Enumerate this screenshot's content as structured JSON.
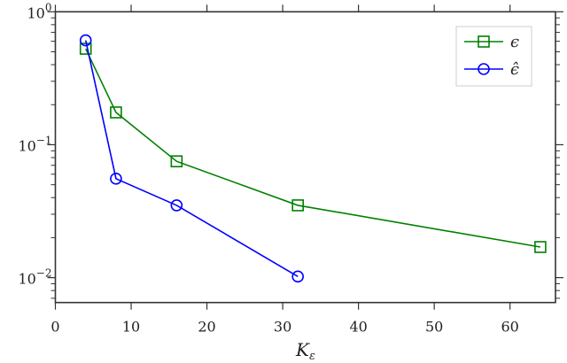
{
  "chart_data": {
    "type": "line",
    "title": "",
    "xlabel": "K_ε",
    "xlabel_main": "K",
    "xlabel_sub": "ε",
    "ylabel": "",
    "xlim": [
      0,
      66
    ],
    "ylim": [
      0.0065,
      1
    ],
    "yscale": "log",
    "xticks": [
      0,
      10,
      20,
      30,
      40,
      50,
      60
    ],
    "xtick_labels": [
      "0",
      "10",
      "20",
      "30",
      "40",
      "50",
      "60"
    ],
    "yticks": [
      1,
      0.1,
      0.01
    ],
    "ytick_labels": [
      {
        "base": "10",
        "exp": "0"
      },
      {
        "base": "10",
        "exp": "−1"
      },
      {
        "base": "10",
        "exp": "−2"
      }
    ],
    "grid": false,
    "legend_position": "top-right",
    "series": [
      {
        "name": "ϵ",
        "color": "#008000",
        "marker": "square",
        "x": [
          4,
          8,
          16,
          32,
          64
        ],
        "y": [
          0.527,
          0.175,
          0.075,
          0.035,
          0.017
        ]
      },
      {
        "name": "ϵ̂",
        "color": "#0000ff",
        "marker": "circle",
        "x": [
          4,
          8,
          16,
          32
        ],
        "y": [
          0.61,
          0.0555,
          0.035,
          0.0102
        ]
      }
    ]
  }
}
